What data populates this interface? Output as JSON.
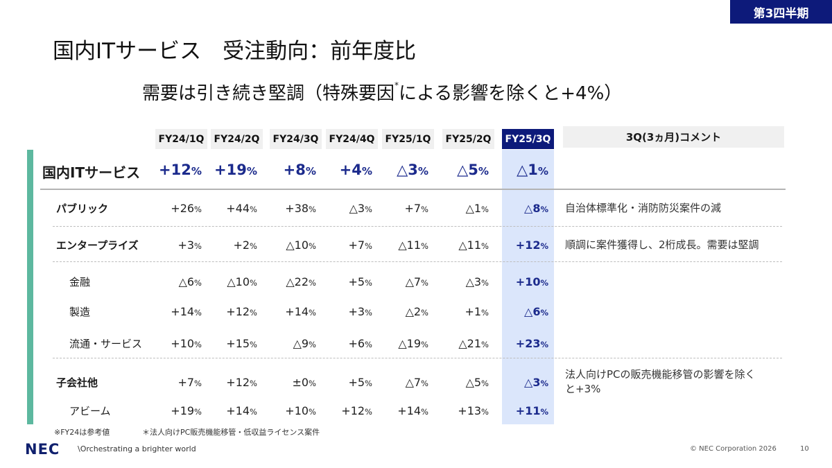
{
  "badge": "第3四半期",
  "title": "国内ITサービス　受注動向：前年度比",
  "subtitle": {
    "before": "需要は引き続き堅調（特殊要因",
    "mark": "*",
    "after": "による影響を除くと+4%）"
  },
  "columns": [
    "FY24/1Q",
    "FY24/2Q",
    "FY24/3Q",
    "FY24/4Q",
    "FY25/1Q",
    "FY25/2Q",
    "FY25/3Q"
  ],
  "comment_header": "3Q(3ヵ月)コメント",
  "rows": [
    {
      "label": "国内ITサービス",
      "values": [
        [
          "+12",
          "%"
        ],
        [
          "+19",
          "%"
        ],
        [
          "+8",
          "%"
        ],
        [
          "+4",
          "%"
        ],
        [
          "△3",
          "%"
        ],
        [
          "△5",
          "%"
        ],
        [
          "△1",
          "%"
        ]
      ],
      "comment": ""
    },
    {
      "label": "パブリック",
      "values": [
        [
          "+26",
          "%"
        ],
        [
          "+44",
          "%"
        ],
        [
          "+38",
          "%"
        ],
        [
          "△3",
          "%"
        ],
        [
          "+7",
          "%"
        ],
        [
          "△1",
          "%"
        ],
        [
          "△8",
          "%"
        ]
      ],
      "comment": "自治体標準化・消防防災案件の減"
    },
    {
      "label": "エンタープライズ",
      "values": [
        [
          "+3",
          "%"
        ],
        [
          "+2",
          "%"
        ],
        [
          "△10",
          "%"
        ],
        [
          "+7",
          "%"
        ],
        [
          "△11",
          "%"
        ],
        [
          "△11",
          "%"
        ],
        [
          "+12",
          "%"
        ]
      ],
      "comment": "順調に案件獲得し、2桁成長。需要は堅調"
    },
    {
      "label": "金融",
      "values": [
        [
          "△6",
          "%"
        ],
        [
          "△10",
          "%"
        ],
        [
          "△22",
          "%"
        ],
        [
          "+5",
          "%"
        ],
        [
          "△7",
          "%"
        ],
        [
          "△3",
          "%"
        ],
        [
          "+10",
          "%"
        ]
      ],
      "comment": ""
    },
    {
      "label": "製造",
      "values": [
        [
          "+14",
          "%"
        ],
        [
          "+12",
          "%"
        ],
        [
          "+14",
          "%"
        ],
        [
          "+3",
          "%"
        ],
        [
          "△2",
          "%"
        ],
        [
          "+1",
          "%"
        ],
        [
          "△6",
          "%"
        ]
      ],
      "comment": ""
    },
    {
      "label": "流通・サービス",
      "values": [
        [
          "+10",
          "%"
        ],
        [
          "+15",
          "%"
        ],
        [
          "△9",
          "%"
        ],
        [
          "+6",
          "%"
        ],
        [
          "△19",
          "%"
        ],
        [
          "△21",
          "%"
        ],
        [
          "+23",
          "%"
        ]
      ],
      "comment": ""
    },
    {
      "label": "子会社他",
      "values": [
        [
          "+7",
          "%"
        ],
        [
          "+12",
          "%"
        ],
        [
          "±0",
          "%"
        ],
        [
          "+5",
          "%"
        ],
        [
          "△7",
          "%"
        ],
        [
          "△5",
          "%"
        ],
        [
          "△3",
          "%"
        ]
      ],
      "comment_lines": [
        "法人向けPCの販売機能移管の影響を除く",
        "と+3%"
      ]
    },
    {
      "label": "アビーム",
      "values": [
        [
          "+19",
          "%"
        ],
        [
          "+14",
          "%"
        ],
        [
          "+10",
          "%"
        ],
        [
          "+12",
          "%"
        ],
        [
          "+14",
          "%"
        ],
        [
          "+13",
          "%"
        ],
        [
          "+11",
          "%"
        ]
      ],
      "comment": ""
    }
  ],
  "footnotes": [
    "※FY24は参考値",
    "＊法人向けPC販売機能移管・低収益ライセンス案件"
  ],
  "footer": {
    "logo": "NEC",
    "tagline": "\\Orchestrating a brighter world",
    "copyright": "© NEC Corporation 2026",
    "page": "10"
  },
  "colors": {
    "navy": "#0d1a7a",
    "accent_green": "#5db89f",
    "highlight": "#dbe6fb"
  }
}
